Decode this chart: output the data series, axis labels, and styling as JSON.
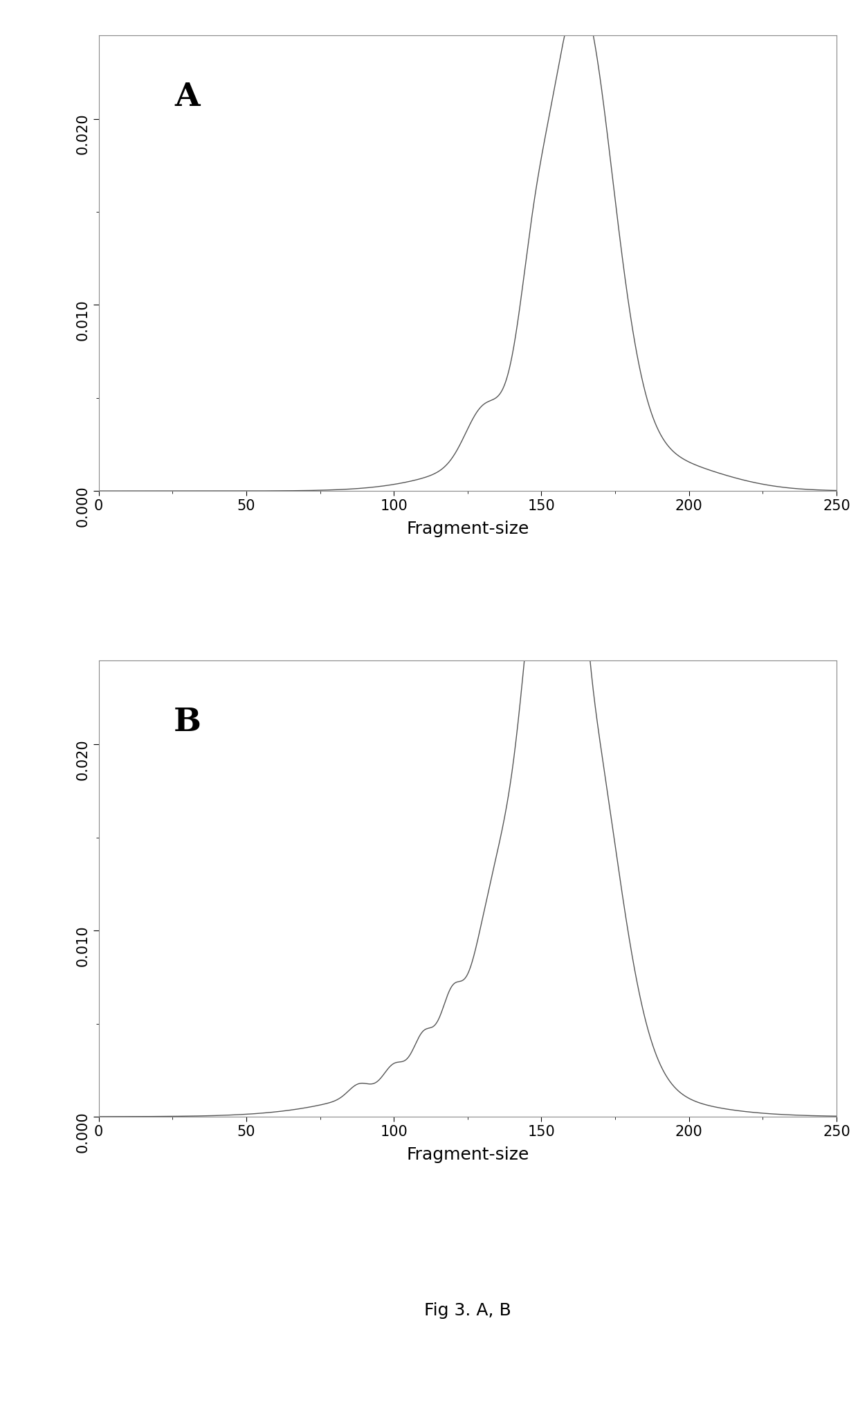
{
  "panel_A_label": "A",
  "panel_B_label": "B",
  "xlabel": "Fragment-size",
  "caption": "Fig 3. A, B",
  "xlim": [
    0,
    250
  ],
  "ylim": [
    0,
    0.0245
  ],
  "yticks": [
    0.0,
    0.01,
    0.02
  ],
  "xticks": [
    0,
    50,
    100,
    150,
    200,
    250
  ],
  "line_color": "#555555",
  "line_width": 1.0,
  "bg_color": "#ffffff",
  "panel_bg": "#ffffff",
  "tick_fontsize": 15,
  "xlabel_fontsize": 18,
  "caption_fontsize": 18,
  "panel_letter_fontsize": 34,
  "spine_color": "#888888",
  "spine_lw": 0.8
}
